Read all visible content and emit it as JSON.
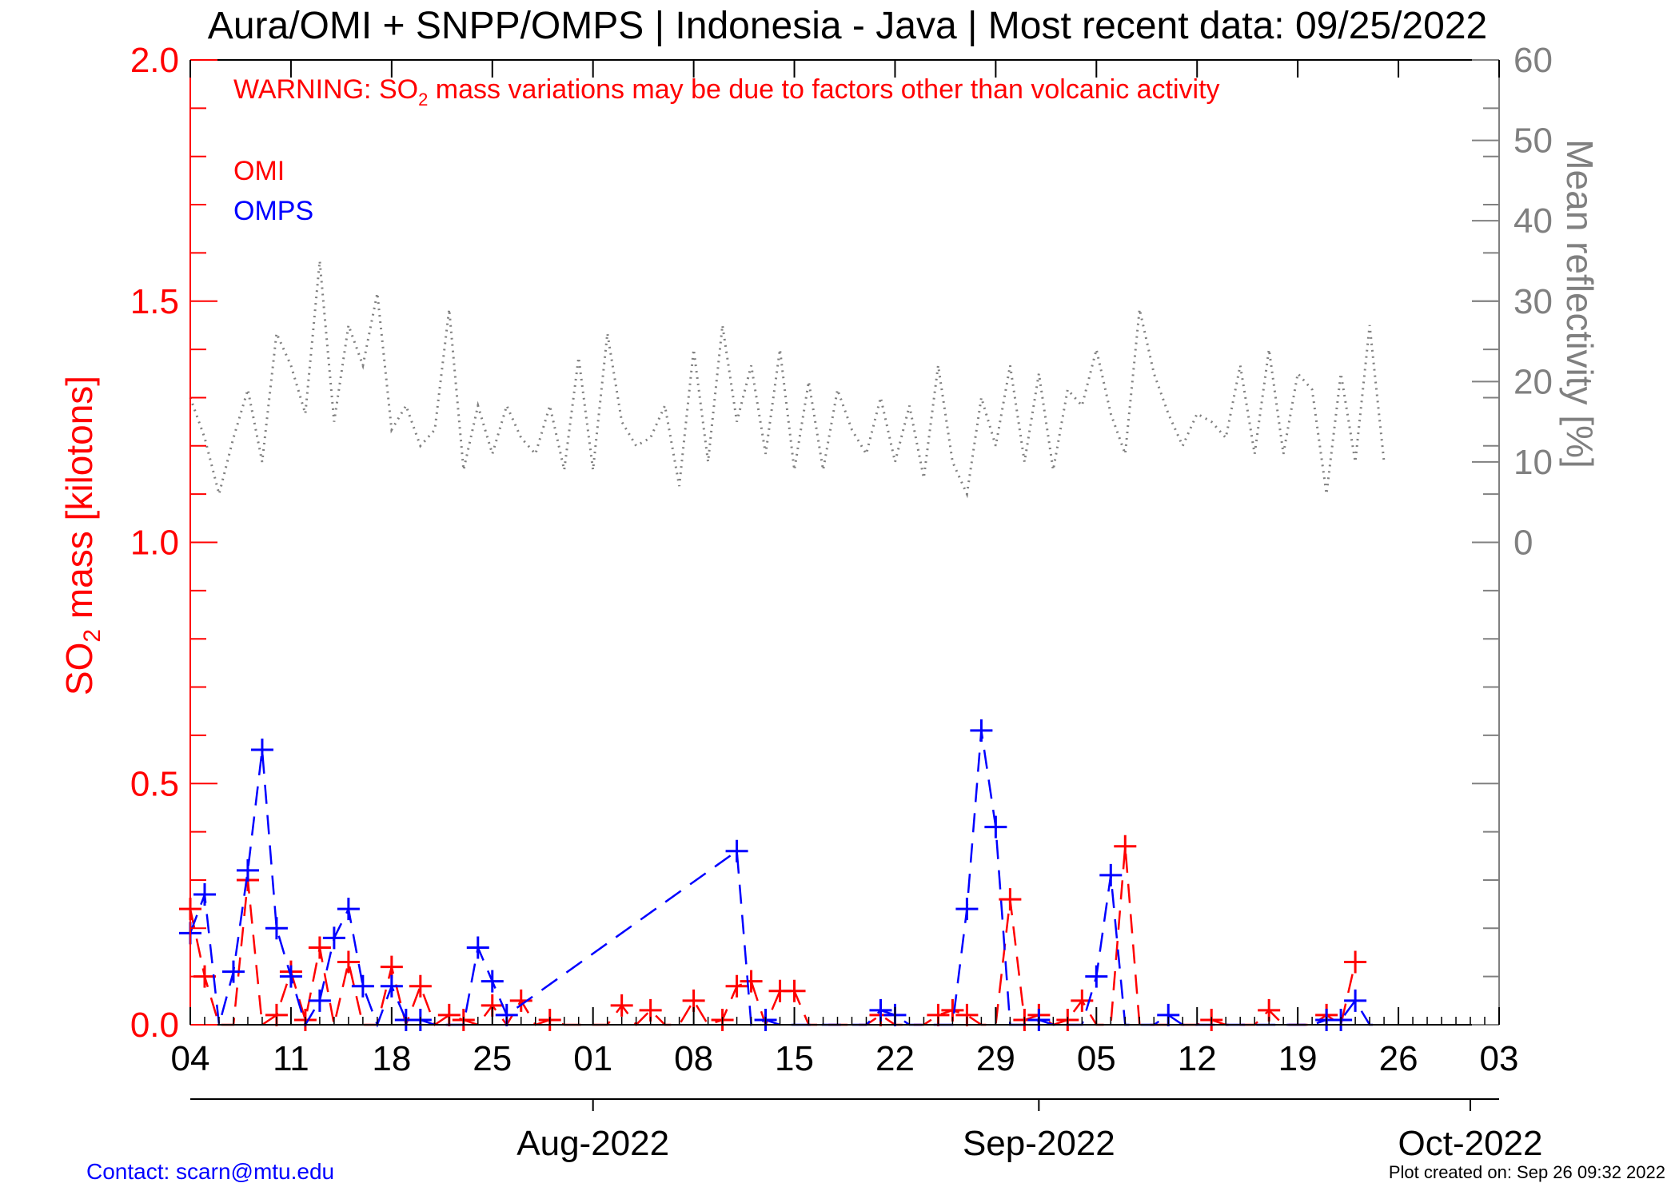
{
  "chart_data": {
    "type": "line",
    "title": "Aura/OMI + SNPP/OMPS | Indonesia - Java | Most recent data: 09/25/2022",
    "warning": {
      "prefix": "WARNING: SO",
      "sub": "2",
      "suffix": " mass variations may be due to factors other than volcanic activity"
    },
    "ylabel": {
      "prefix": "SO",
      "sub": "2",
      "suffix": " mass [kilotons]"
    },
    "y2label": "Mean reflectivity [%]",
    "ylim": [
      0,
      2.0
    ],
    "y2lim": [
      0,
      60
    ],
    "xlim": [
      "2022-07-04",
      "2022-10-03"
    ],
    "y_ticks": [
      "0.0",
      "0.5",
      "1.0",
      "1.5",
      "2.0"
    ],
    "y2_ticks": [
      "0",
      "10",
      "20",
      "30",
      "40",
      "50",
      "60"
    ],
    "x_ticks": [
      "04",
      "11",
      "18",
      "25",
      "01",
      "08",
      "15",
      "22",
      "29",
      "05",
      "12",
      "19",
      "26",
      "03"
    ],
    "month_labels": [
      "Aug-2022",
      "Sep-2022",
      "Oct-2022"
    ],
    "grid": false,
    "colors": {
      "omi": "#ff0000",
      "omps": "#0000ff",
      "reflectivity": "#808080",
      "left_axis": "#ff0000",
      "right_axis": "#808080"
    },
    "series": [
      {
        "name": "OMI",
        "x": [
          "2022-07-04",
          "2022-07-05",
          "2022-07-06",
          "2022-07-07",
          "2022-07-08",
          "2022-07-09",
          "2022-07-10",
          "2022-07-11",
          "2022-07-12",
          "2022-07-13",
          "2022-07-14",
          "2022-07-15",
          "2022-07-16",
          "2022-07-17",
          "2022-07-18",
          "2022-07-19",
          "2022-07-20",
          "2022-07-21",
          "2022-07-22",
          "2022-07-23",
          "2022-07-24",
          "2022-07-25",
          "2022-07-26",
          "2022-07-27",
          "2022-07-28",
          "2022-07-29",
          "2022-07-30",
          "2022-07-31",
          "2022-08-01",
          "2022-08-02",
          "2022-08-03",
          "2022-08-04",
          "2022-08-05",
          "2022-08-06",
          "2022-08-07",
          "2022-08-08",
          "2022-08-09",
          "2022-08-10",
          "2022-08-11",
          "2022-08-12",
          "2022-08-13",
          "2022-08-14",
          "2022-08-15",
          "2022-08-16",
          "2022-08-17",
          "2022-08-18",
          "2022-08-19",
          "2022-08-20",
          "2022-08-21",
          "2022-08-22",
          "2022-08-23",
          "2022-08-24",
          "2022-08-25",
          "2022-08-26",
          "2022-08-27",
          "2022-08-28",
          "2022-08-29",
          "2022-08-30",
          "2022-08-31",
          "2022-09-01",
          "2022-09-02",
          "2022-09-03",
          "2022-09-04",
          "2022-09-05",
          "2022-09-06",
          "2022-09-07",
          "2022-09-08",
          "2022-09-09",
          "2022-09-10",
          "2022-09-11",
          "2022-09-12",
          "2022-09-13",
          "2022-09-14",
          "2022-09-15",
          "2022-09-16",
          "2022-09-17",
          "2022-09-18",
          "2022-09-19",
          "2022-09-20",
          "2022-09-21",
          "2022-09-22",
          "2022-09-23"
        ],
        "values": [
          0.24,
          0.1,
          0.0,
          0.0,
          0.3,
          0.0,
          0.02,
          0.11,
          0.01,
          0.16,
          0.0,
          0.13,
          0.0,
          0.0,
          0.12,
          0.0,
          0.08,
          0.0,
          0.02,
          0.01,
          0.0,
          0.04,
          0.0,
          0.05,
          0.0,
          0.01,
          0.0,
          0.0,
          0.0,
          0.0,
          0.04,
          0.0,
          0.03,
          0.0,
          0.0,
          0.05,
          0.0,
          0.01,
          0.08,
          0.09,
          0.0,
          0.07,
          0.07,
          0.0,
          0.0,
          0.0,
          0.0,
          0.0,
          0.02,
          0.0,
          0.0,
          0.0,
          0.02,
          0.03,
          0.02,
          0.0,
          0.0,
          0.26,
          0.01,
          0.02,
          0.0,
          0.01,
          0.05,
          0.0,
          0.0,
          0.37,
          0.0,
          0.0,
          0.0,
          0.0,
          0.0,
          0.01,
          0.0,
          0.0,
          0.0,
          0.03,
          0.0,
          0.0,
          0.0,
          0.02,
          0.0,
          0.13
        ]
      },
      {
        "name": "OMPS",
        "x": [
          "2022-07-04",
          "2022-07-05",
          "2022-07-06",
          "2022-07-07",
          "2022-07-08",
          "2022-07-09",
          "2022-07-10",
          "2022-07-11",
          "2022-07-12",
          "2022-07-13",
          "2022-07-14",
          "2022-07-15",
          "2022-07-16",
          "2022-07-17",
          "2022-07-18",
          "2022-07-19",
          "2022-07-20",
          "2022-07-21",
          "2022-07-22",
          "2022-07-23",
          "2022-07-24",
          "2022-07-25",
          "2022-07-26",
          "2022-08-11",
          "2022-08-12",
          "2022-08-13",
          "2022-08-14",
          "2022-08-15",
          "2022-08-16",
          "2022-08-17",
          "2022-08-18",
          "2022-08-19",
          "2022-08-20",
          "2022-08-21",
          "2022-08-22",
          "2022-08-23",
          "2022-08-24",
          "2022-08-25",
          "2022-08-26",
          "2022-08-27",
          "2022-08-28",
          "2022-08-29",
          "2022-08-30",
          "2022-08-31",
          "2022-09-01",
          "2022-09-02",
          "2022-09-03",
          "2022-09-04",
          "2022-09-05",
          "2022-09-06",
          "2022-09-07",
          "2022-09-08",
          "2022-09-09",
          "2022-09-10",
          "2022-09-11",
          "2022-09-12",
          "2022-09-13",
          "2022-09-14",
          "2022-09-15",
          "2022-09-16",
          "2022-09-17",
          "2022-09-18",
          "2022-09-19",
          "2022-09-20",
          "2022-09-21",
          "2022-09-22",
          "2022-09-23",
          "2022-09-24",
          "2022-09-25"
        ],
        "values": [
          0.19,
          0.27,
          0.0,
          0.11,
          0.32,
          0.57,
          0.2,
          0.1,
          0.0,
          0.05,
          0.18,
          0.24,
          0.08,
          0.0,
          0.08,
          0.01,
          0.01,
          0.0,
          0.0,
          0.0,
          0.16,
          0.09,
          0.02,
          0.36,
          0.0,
          0.01,
          0.0,
          0.0,
          0.0,
          0.0,
          0.0,
          0.0,
          0.0,
          0.03,
          0.02,
          0.0,
          0.0,
          0.0,
          0.0,
          0.24,
          0.61,
          0.41,
          0.0,
          0.0,
          0.01,
          0.0,
          0.0,
          0.0,
          0.1,
          0.31,
          0.0,
          0.0,
          0.0,
          0.02,
          0.0,
          0.0,
          0.0,
          0.0,
          0.0,
          0.0,
          0.0,
          0.0,
          0.0,
          0.0,
          0.01,
          0.01,
          0.05,
          0.0,
          0.0
        ]
      },
      {
        "name": "Mean reflectivity",
        "axis": "right",
        "x": [
          "2022-07-04",
          "2022-07-05",
          "2022-07-06",
          "2022-07-07",
          "2022-07-08",
          "2022-07-09",
          "2022-07-10",
          "2022-07-11",
          "2022-07-12",
          "2022-07-13",
          "2022-07-14",
          "2022-07-15",
          "2022-07-16",
          "2022-07-17",
          "2022-07-18",
          "2022-07-19",
          "2022-07-20",
          "2022-07-21",
          "2022-07-22",
          "2022-07-23",
          "2022-07-24",
          "2022-07-25",
          "2022-07-26",
          "2022-07-27",
          "2022-07-28",
          "2022-07-29",
          "2022-07-30",
          "2022-07-31",
          "2022-08-01",
          "2022-08-02",
          "2022-08-03",
          "2022-08-04",
          "2022-08-05",
          "2022-08-06",
          "2022-08-07",
          "2022-08-08",
          "2022-08-09",
          "2022-08-10",
          "2022-08-11",
          "2022-08-12",
          "2022-08-13",
          "2022-08-14",
          "2022-08-15",
          "2022-08-16",
          "2022-08-17",
          "2022-08-18",
          "2022-08-19",
          "2022-08-20",
          "2022-08-21",
          "2022-08-22",
          "2022-08-23",
          "2022-08-24",
          "2022-08-25",
          "2022-08-26",
          "2022-08-27",
          "2022-08-28",
          "2022-08-29",
          "2022-08-30",
          "2022-08-31",
          "2022-09-01",
          "2022-09-02",
          "2022-09-03",
          "2022-09-04",
          "2022-09-05",
          "2022-09-06",
          "2022-09-07",
          "2022-09-08",
          "2022-09-09",
          "2022-09-10",
          "2022-09-11",
          "2022-09-12",
          "2022-09-13",
          "2022-09-14",
          "2022-09-15",
          "2022-09-16",
          "2022-09-17",
          "2022-09-18",
          "2022-09-19",
          "2022-09-20",
          "2022-09-21",
          "2022-09-22",
          "2022-09-23",
          "2022-09-24",
          "2022-09-25"
        ],
        "values": [
          18,
          13,
          6,
          13,
          19,
          10,
          26,
          22,
          16,
          35,
          15,
          27,
          22,
          31,
          14,
          17,
          12,
          14,
          29,
          9,
          17,
          11,
          17,
          13,
          11,
          17,
          9,
          23,
          9,
          26,
          15,
          12,
          13,
          17,
          7,
          24,
          10,
          27,
          15,
          22,
          11,
          24,
          9,
          20,
          9,
          19,
          14,
          11,
          18,
          10,
          17,
          8,
          22,
          10,
          6,
          18,
          12,
          22,
          10,
          21,
          9,
          19,
          17,
          24,
          16,
          11,
          29,
          21,
          16,
          12,
          16,
          15,
          13,
          22,
          11,
          24,
          11,
          21,
          19,
          6,
          21,
          10,
          27,
          10
        ]
      }
    ]
  },
  "footer": {
    "contact": "Contact: scarn@mtu.edu",
    "created": "Plot created on: Sep 26 09:32 2022"
  }
}
